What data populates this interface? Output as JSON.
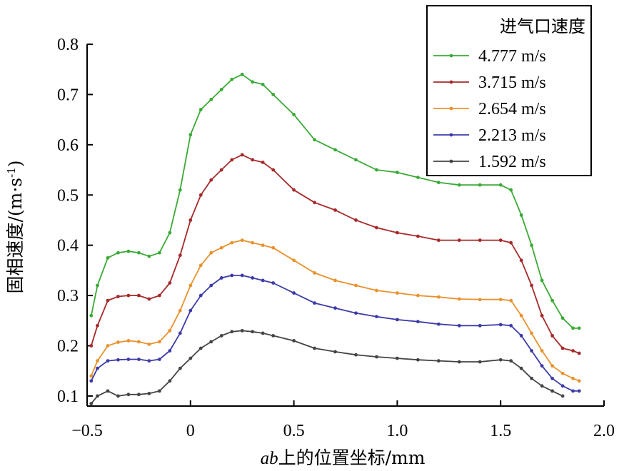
{
  "chart_data": {
    "type": "line",
    "xlabel_italic": "ab",
    "xlabel_rest": "上的位置坐标/mm",
    "ylabel": "固相速度/(m·s",
    "ylabel_sup": "-1",
    "ylabel_close": ")",
    "xlim": [
      -0.5,
      2.0
    ],
    "ylim": [
      0.08,
      0.8
    ],
    "x_ticks": [
      -0.5,
      0,
      0.5,
      1.0,
      1.5,
      2.0
    ],
    "x_tick_labels": [
      "−0.5",
      "0",
      "0.5",
      "1.0",
      "1.5",
      "2.0"
    ],
    "y_ticks": [
      0.1,
      0.2,
      0.3,
      0.4,
      0.5,
      0.6,
      0.7,
      0.8
    ],
    "y_tick_labels": [
      "0.1",
      "0.2",
      "0.3",
      "0.4",
      "0.5",
      "0.6",
      "0.7",
      "0.8"
    ],
    "grid": false,
    "legend": {
      "title": "进气口速度",
      "placement": "top-right"
    },
    "series": [
      {
        "name": "4.777 m/s",
        "color": "#3aaa35",
        "x": [
          -0.48,
          -0.45,
          -0.4,
          -0.35,
          -0.3,
          -0.25,
          -0.2,
          -0.15,
          -0.1,
          -0.05,
          0,
          0.05,
          0.1,
          0.15,
          0.2,
          0.25,
          0.3,
          0.35,
          0.4,
          0.5,
          0.6,
          0.7,
          0.8,
          0.9,
          1.0,
          1.1,
          1.2,
          1.3,
          1.4,
          1.5,
          1.55,
          1.6,
          1.65,
          1.7,
          1.75,
          1.8,
          1.85,
          1.88
        ],
        "y": [
          0.26,
          0.32,
          0.375,
          0.385,
          0.388,
          0.385,
          0.378,
          0.385,
          0.425,
          0.51,
          0.62,
          0.67,
          0.69,
          0.71,
          0.73,
          0.74,
          0.725,
          0.72,
          0.7,
          0.66,
          0.61,
          0.59,
          0.57,
          0.55,
          0.545,
          0.535,
          0.525,
          0.52,
          0.52,
          0.52,
          0.51,
          0.46,
          0.4,
          0.33,
          0.29,
          0.255,
          0.235,
          0.235
        ]
      },
      {
        "name": "3.715 m/s",
        "color": "#a52a2a",
        "x": [
          -0.48,
          -0.45,
          -0.4,
          -0.35,
          -0.3,
          -0.25,
          -0.2,
          -0.15,
          -0.1,
          -0.05,
          0,
          0.05,
          0.1,
          0.15,
          0.2,
          0.25,
          0.3,
          0.35,
          0.4,
          0.5,
          0.6,
          0.7,
          0.8,
          0.9,
          1.0,
          1.1,
          1.2,
          1.3,
          1.4,
          1.5,
          1.55,
          1.6,
          1.65,
          1.7,
          1.75,
          1.8,
          1.85,
          1.88
        ],
        "y": [
          0.2,
          0.24,
          0.29,
          0.298,
          0.3,
          0.3,
          0.293,
          0.3,
          0.325,
          0.38,
          0.45,
          0.5,
          0.53,
          0.55,
          0.57,
          0.58,
          0.57,
          0.565,
          0.55,
          0.51,
          0.485,
          0.47,
          0.45,
          0.435,
          0.425,
          0.418,
          0.41,
          0.41,
          0.41,
          0.41,
          0.405,
          0.37,
          0.32,
          0.26,
          0.22,
          0.195,
          0.19,
          0.185
        ]
      },
      {
        "name": "2.654 m/s",
        "color": "#e8922e",
        "x": [
          -0.48,
          -0.45,
          -0.4,
          -0.35,
          -0.3,
          -0.25,
          -0.2,
          -0.15,
          -0.1,
          -0.05,
          0,
          0.05,
          0.1,
          0.15,
          0.2,
          0.25,
          0.3,
          0.35,
          0.4,
          0.5,
          0.6,
          0.7,
          0.8,
          0.9,
          1.0,
          1.1,
          1.2,
          1.3,
          1.4,
          1.5,
          1.55,
          1.6,
          1.65,
          1.7,
          1.75,
          1.8,
          1.85,
          1.88
        ],
        "y": [
          0.14,
          0.17,
          0.2,
          0.207,
          0.21,
          0.208,
          0.203,
          0.208,
          0.23,
          0.27,
          0.32,
          0.36,
          0.385,
          0.395,
          0.405,
          0.41,
          0.405,
          0.4,
          0.395,
          0.37,
          0.345,
          0.33,
          0.32,
          0.31,
          0.305,
          0.3,
          0.297,
          0.293,
          0.292,
          0.292,
          0.29,
          0.26,
          0.225,
          0.19,
          0.16,
          0.145,
          0.135,
          0.13
        ]
      },
      {
        "name": "2.213 m/s",
        "color": "#3d3ba8",
        "x": [
          -0.48,
          -0.45,
          -0.4,
          -0.35,
          -0.3,
          -0.25,
          -0.2,
          -0.15,
          -0.1,
          -0.05,
          0,
          0.05,
          0.1,
          0.15,
          0.2,
          0.25,
          0.3,
          0.35,
          0.4,
          0.5,
          0.6,
          0.7,
          0.8,
          0.9,
          1.0,
          1.1,
          1.2,
          1.3,
          1.4,
          1.5,
          1.55,
          1.6,
          1.65,
          1.7,
          1.75,
          1.8,
          1.85,
          1.88
        ],
        "y": [
          0.13,
          0.155,
          0.17,
          0.172,
          0.173,
          0.173,
          0.17,
          0.173,
          0.19,
          0.225,
          0.27,
          0.3,
          0.32,
          0.335,
          0.34,
          0.34,
          0.335,
          0.33,
          0.325,
          0.305,
          0.285,
          0.275,
          0.265,
          0.258,
          0.252,
          0.248,
          0.243,
          0.24,
          0.24,
          0.242,
          0.24,
          0.22,
          0.19,
          0.16,
          0.135,
          0.12,
          0.11,
          0.11
        ]
      },
      {
        "name": "1.592 m/s",
        "color": "#444444",
        "x": [
          -0.48,
          -0.45,
          -0.4,
          -0.35,
          -0.3,
          -0.25,
          -0.2,
          -0.15,
          -0.1,
          -0.05,
          0,
          0.05,
          0.1,
          0.15,
          0.2,
          0.25,
          0.3,
          0.35,
          0.4,
          0.5,
          0.6,
          0.7,
          0.8,
          0.9,
          1.0,
          1.1,
          1.2,
          1.3,
          1.4,
          1.5,
          1.55,
          1.6,
          1.65,
          1.7,
          1.75,
          1.8
        ],
        "y": [
          0.085,
          0.1,
          0.11,
          0.1,
          0.103,
          0.103,
          0.105,
          0.11,
          0.13,
          0.155,
          0.175,
          0.195,
          0.208,
          0.22,
          0.228,
          0.23,
          0.228,
          0.225,
          0.22,
          0.21,
          0.195,
          0.188,
          0.182,
          0.178,
          0.175,
          0.172,
          0.17,
          0.168,
          0.168,
          0.172,
          0.17,
          0.155,
          0.135,
          0.12,
          0.11,
          0.1
        ]
      }
    ]
  }
}
